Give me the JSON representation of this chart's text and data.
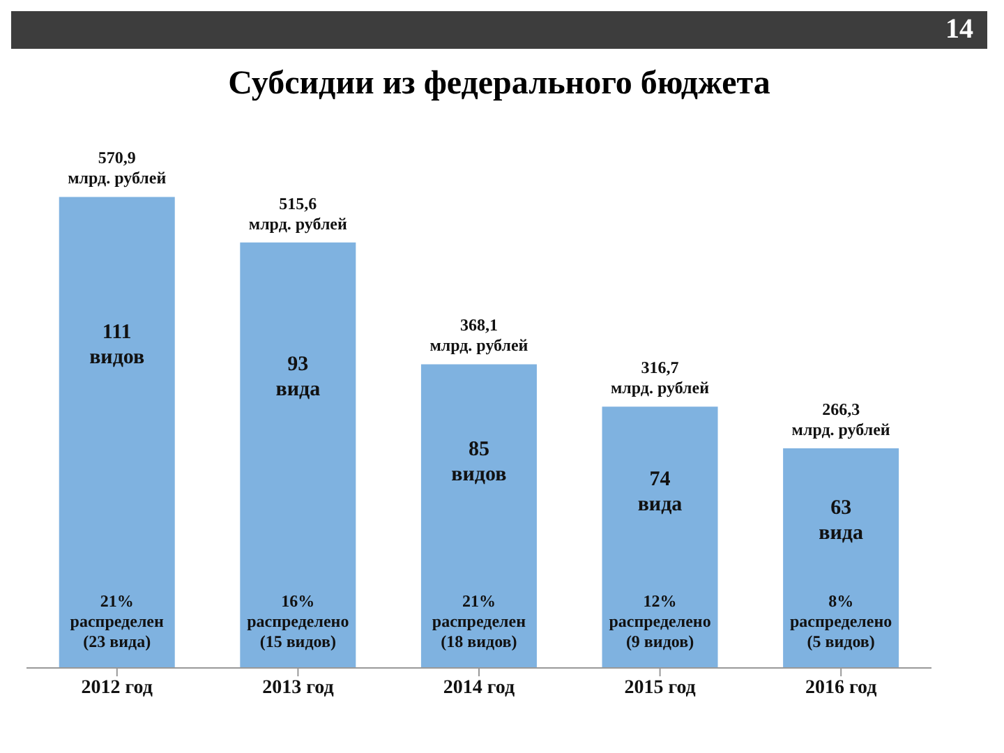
{
  "chart_data": {
    "type": "bar",
    "title": "Субсидии из федерального бюджета",
    "categories": [
      "2012 год",
      "2013 год",
      "2014 год",
      "2015 год",
      "2016 год"
    ],
    "values": [
      570.9,
      515.6,
      368.1,
      316.7,
      266.3
    ],
    "value_labels": [
      "570,9\nмлрд. рублей",
      "515,6\nмлрд. рублей",
      "368,1\nмлрд. рублей",
      "316,7\nмлрд. рублей",
      "266,3\nмлрд. рублей"
    ],
    "color": "#7fb2e0",
    "tick_labels": "x",
    "annotations": [
      "14",
      "111\nвидов",
      "93\nвида",
      "85\nвидов",
      "74\nвида",
      "63\nвида",
      "21%\nраспределен\n(23 вида)",
      "16%\nраспределено\n(15 видов)",
      "21%\nраспределен\n(18 видов)",
      "12%\nраспределено\n(9 видов)",
      "8%\nраспределено\n(5 видов)"
    ]
  }
}
